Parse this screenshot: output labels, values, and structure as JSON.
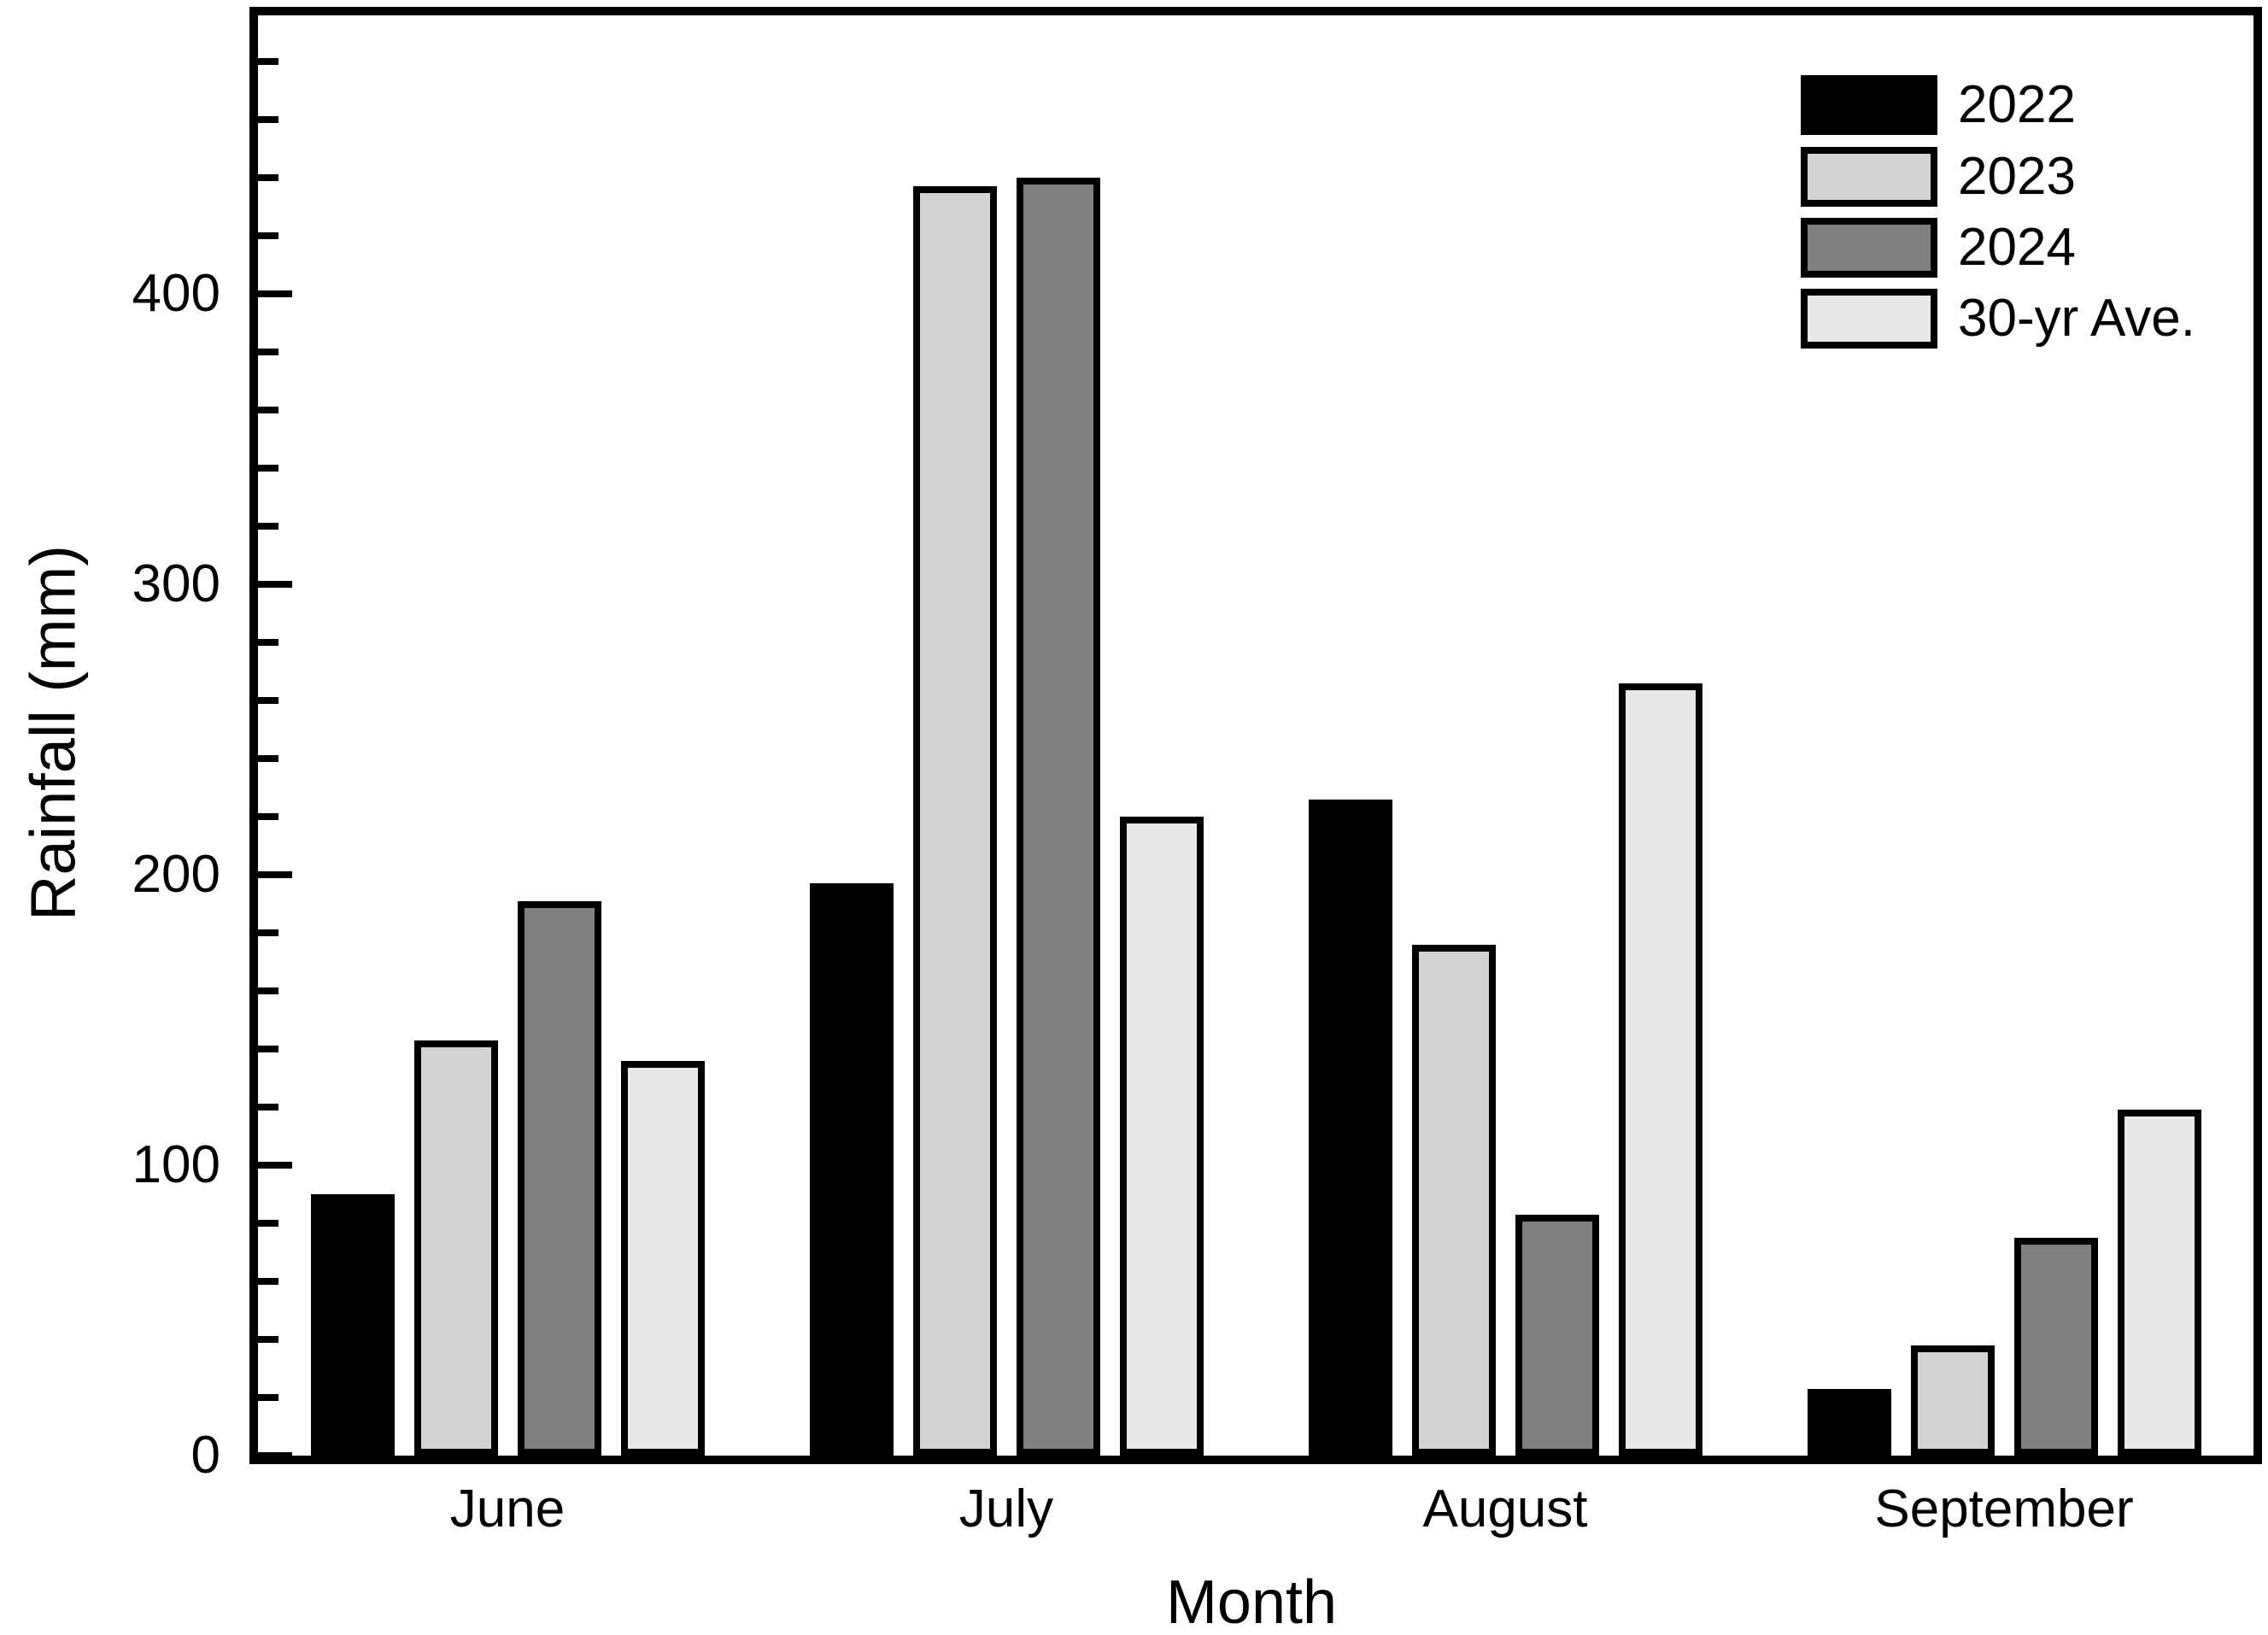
{
  "chart_data": {
    "type": "bar",
    "title": "",
    "xlabel": "Month",
    "ylabel": "Rainfall (mm)",
    "categories": [
      "June",
      "July",
      "August",
      "September"
    ],
    "series": [
      {
        "name": "2022",
        "color": "#000000",
        "values": [
          90,
          197,
          226,
          23
        ]
      },
      {
        "name": "2023",
        "color": "#d3d3d3",
        "values": [
          143,
          437,
          176,
          38
        ]
      },
      {
        "name": "2024",
        "color": "#808080",
        "values": [
          191,
          440,
          83,
          75
        ]
      },
      {
        "name": "30-yr Ave.",
        "color": "#e8e8e8",
        "values": [
          136,
          220,
          266,
          119
        ]
      }
    ],
    "ylim": [
      0,
      500
    ],
    "ytick_major": [
      0,
      100,
      200,
      300,
      400
    ],
    "ytick_minor_step": 20,
    "grid": false,
    "legend_position": "top-right",
    "bar_edge_color": "#000000",
    "background_color": "#ffffff"
  }
}
